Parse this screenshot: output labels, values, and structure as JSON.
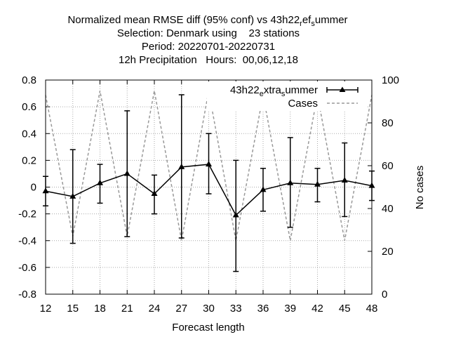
{
  "title_lines": [
    "Normalized mean RMSE diff (95% conf) vs 43h22ref_summer",
    "Selection: Denmark using    23 stations",
    "Period: 20220701-20220731",
    "12h Precipitation   Hours:  00,06,12,18"
  ],
  "chart_data": {
    "type": "line",
    "xlabel": "Forecast length",
    "ylabel": "",
    "y2label": "No cases",
    "grid": true,
    "legend_position": "top-right",
    "x": [
      12,
      15,
      18,
      21,
      24,
      27,
      30,
      33,
      36,
      39,
      42,
      45,
      48
    ],
    "xlim": [
      12,
      48
    ],
    "ylim": [
      -0.8,
      0.8
    ],
    "y2lim": [
      0,
      100
    ],
    "xticks": [
      "12",
      "15",
      "18",
      "21",
      "24",
      "27",
      "30",
      "33",
      "36",
      "39",
      "42",
      "45",
      "48"
    ],
    "yticks": [
      "0.8",
      "0.6",
      "0.4",
      "0.2",
      "0",
      "-0.2",
      "-0.4",
      "-0.6",
      "-0.8"
    ],
    "y2ticks": [
      "100",
      "80",
      "60",
      "40",
      "20",
      "0"
    ],
    "series": [
      {
        "name": "43h22_extra_summer",
        "axis": "left",
        "color": "#000000",
        "style": "solid-triangles-errorbars",
        "values": [
          -0.03,
          -0.07,
          0.03,
          0.1,
          -0.05,
          0.15,
          0.17,
          -0.21,
          -0.02,
          0.03,
          0.02,
          0.05,
          0.01
        ],
        "err_low": [
          -0.14,
          -0.42,
          -0.12,
          -0.37,
          -0.2,
          -0.38,
          -0.05,
          -0.63,
          -0.18,
          -0.3,
          -0.11,
          -0.22,
          -0.1
        ],
        "err_high": [
          0.08,
          0.28,
          0.17,
          0.57,
          0.09,
          0.69,
          0.4,
          0.2,
          0.14,
          0.37,
          0.14,
          0.33,
          0.12
        ]
      },
      {
        "name": "Cases",
        "axis": "right",
        "color": "#999999",
        "style": "dashed",
        "values": [
          93,
          27,
          95,
          27,
          95,
          25,
          95,
          25,
          93,
          25,
          93,
          25,
          93
        ]
      }
    ]
  },
  "legend": {
    "main_base": "43h22",
    "main_sub1": "e",
    "main_mid": "xtra",
    "main_sub2": "s",
    "main_end": "ummer",
    "cases_label": "Cases"
  }
}
